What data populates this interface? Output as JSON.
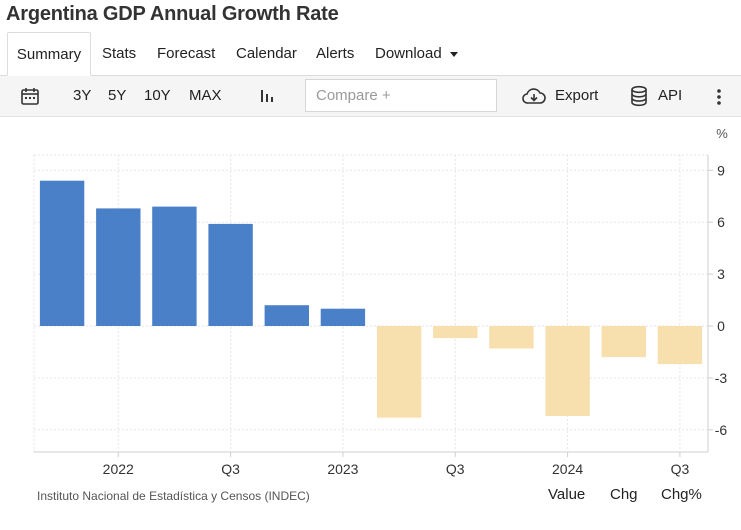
{
  "page": {
    "title": "Argentina GDP Annual Growth Rate"
  },
  "tabs": [
    {
      "label": "Summary"
    },
    {
      "label": "Stats"
    },
    {
      "label": "Forecast"
    },
    {
      "label": "Calendar"
    },
    {
      "label": "Alerts"
    },
    {
      "label": "Download"
    }
  ],
  "toolbar": {
    "ranges": [
      "3Y",
      "5Y",
      "10Y",
      "MAX"
    ],
    "compare_placeholder": "Compare +",
    "export_label": "Export",
    "api_label": "API"
  },
  "footer": {
    "source": "Instituto Nacional de Estadística y Censos (INDEC)",
    "value_label": "Value",
    "chg_label": "Chg",
    "chgpct_label": "Chg%"
  },
  "colors": {
    "positive": "#4a80c8",
    "negative": "#f7e0ae",
    "grid": "#e6e6e6"
  },
  "chart_data": {
    "type": "bar",
    "unit_label": "%",
    "categories": [
      "2021 Q4",
      "2022 Q1",
      "2022 Q2",
      "2022 Q3",
      "2022 Q4",
      "2023 Q1",
      "2023 Q2",
      "2023 Q3",
      "2023 Q4",
      "2024 Q1",
      "2024 Q2",
      "2024 Q3"
    ],
    "values": [
      8.4,
      6.8,
      6.9,
      5.9,
      1.2,
      1.0,
      -5.3,
      -0.7,
      -1.3,
      -5.2,
      -1.8,
      -2.2
    ],
    "ylim": [
      -7.5,
      10
    ],
    "yticks": [
      9,
      6,
      3,
      0,
      -3,
      -6
    ],
    "xticks": [
      {
        "label": "2022",
        "index": 1.5
      },
      {
        "label": "Q3",
        "index": 3.5
      },
      {
        "label": "2023",
        "index": 5.5
      },
      {
        "label": "Q3",
        "index": 7.5
      },
      {
        "label": "2024",
        "index": 9.5
      },
      {
        "label": "Q3",
        "index": 11.5
      }
    ],
    "grid": true,
    "axis_side": "right"
  }
}
